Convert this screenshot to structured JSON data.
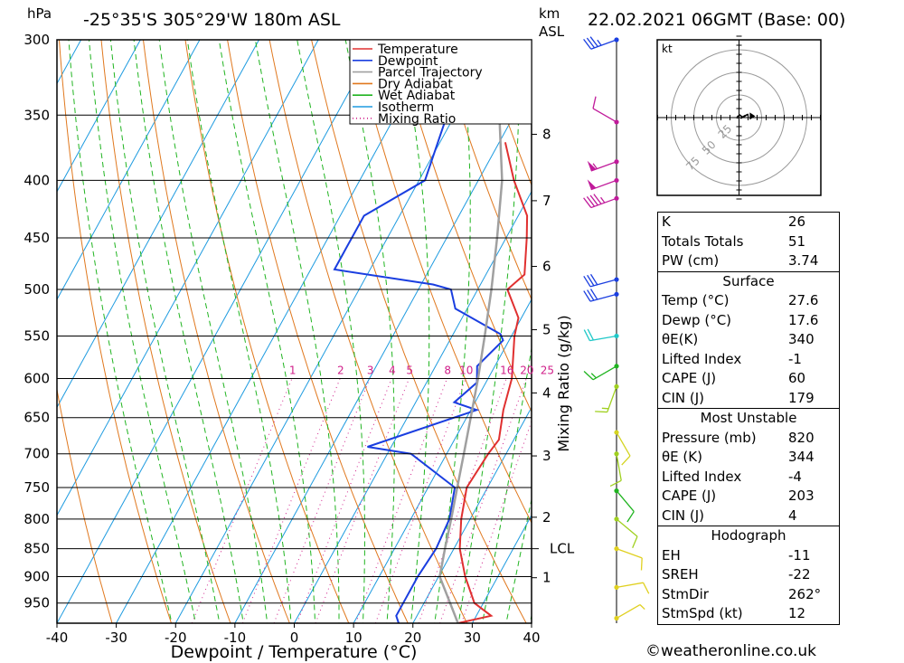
{
  "header": {
    "location": "-25°35'S  305°29'W  180m  ASL",
    "datetime": "22.02.2021  06GMT  (Base: 00)",
    "left_unit": "hPa",
    "km_unit": "km",
    "asl_unit": "ASL",
    "kt_label": "kt"
  },
  "chart_data": {
    "type": "line",
    "subtype": "skew-T log-P",
    "xlabel": "Dewpoint / Temperature (°C)",
    "ylabel": "hPa",
    "right_label": "Mixing Ratio (g/kg)",
    "xlim": [
      -40,
      40
    ],
    "ylim": [
      300,
      990
    ],
    "x_ticks": [
      -40,
      -30,
      -20,
      -10,
      0,
      10,
      20,
      30,
      40
    ],
    "pressure_levels": [
      300,
      350,
      400,
      450,
      500,
      550,
      600,
      650,
      700,
      750,
      800,
      850,
      900,
      950
    ],
    "km_ticks": [
      {
        "label": "1",
        "p": 902
      },
      {
        "label": "2",
        "p": 797
      },
      {
        "label": "3",
        "p": 703
      },
      {
        "label": "4",
        "p": 618
      },
      {
        "label": "5",
        "p": 543
      },
      {
        "label": "6",
        "p": 477
      },
      {
        "label": "7",
        "p": 417
      },
      {
        "label": "8",
        "p": 364
      }
    ],
    "lcl": {
      "label": "LCL",
      "p": 850
    },
    "mixing_ratio_labels": [
      "1",
      "2",
      "3",
      "4",
      "5",
      "8",
      "10",
      "16",
      "20",
      "25"
    ],
    "mixing_ratio_values": [
      1,
      2,
      3,
      4,
      5,
      8,
      10,
      16,
      20,
      25
    ],
    "legend": [
      "Temperature",
      "Dewpoint",
      "Parcel Trajectory",
      "Dry Adiabat",
      "Wet Adiabat",
      "Isotherm",
      "Mixing Ratio"
    ],
    "legend_placement": "top",
    "colors": {
      "temperature": "#e03030",
      "dewpoint": "#1a3ee0",
      "parcel": "#a0a0a0",
      "dry_adiabat": "#e0781e",
      "wet_adiabat": "#20b420",
      "isotherm": "#1e9be0",
      "mixing_ratio": "#d0208a"
    },
    "series": [
      {
        "name": "Temperature",
        "points": [
          [
            990,
            27.6
          ],
          [
            975,
            32.5
          ],
          [
            950,
            28.5
          ],
          [
            900,
            24.5
          ],
          [
            850,
            21.0
          ],
          [
            800,
            18.5
          ],
          [
            750,
            16.5
          ],
          [
            700,
            17.0
          ],
          [
            680,
            17.5
          ],
          [
            640,
            15.5
          ],
          [
            600,
            14.0
          ],
          [
            550,
            10.5
          ],
          [
            530,
            9.5
          ],
          [
            500,
            5.0
          ],
          [
            485,
            6.5
          ],
          [
            450,
            3.5
          ],
          [
            430,
            1.5
          ],
          [
            400,
            -4.0
          ],
          [
            370,
            -9.0
          ]
        ]
      },
      {
        "name": "Dewpoint",
        "points": [
          [
            990,
            17.6
          ],
          [
            975,
            16.5
          ],
          [
            900,
            16.5
          ],
          [
            850,
            17.0
          ],
          [
            800,
            16.5
          ],
          [
            750,
            14.5
          ],
          [
            700,
            4.0
          ],
          [
            690,
            -4.0
          ],
          [
            640,
            11.0
          ],
          [
            630,
            6.5
          ],
          [
            605,
            8.5
          ],
          [
            585,
            7.0
          ],
          [
            555,
            9.0
          ],
          [
            548,
            8.0
          ],
          [
            520,
            -2.0
          ],
          [
            500,
            -4.5
          ],
          [
            495,
            -8.0
          ],
          [
            480,
            -26.0
          ],
          [
            460,
            -26.0
          ],
          [
            430,
            -26.0
          ],
          [
            400,
            -19.0
          ],
          [
            300,
            -24.0
          ]
        ]
      },
      {
        "name": "Parcel Trajectory",
        "points": [
          [
            990,
            27.6
          ],
          [
            950,
            24.4
          ],
          [
            900,
            20.2
          ],
          [
            850,
            18.5
          ],
          [
            800,
            16.8
          ],
          [
            750,
            14.9
          ],
          [
            700,
            12.9
          ],
          [
            650,
            10.7
          ],
          [
            600,
            8.3
          ],
          [
            550,
            5.5
          ],
          [
            500,
            2.3
          ],
          [
            450,
            -1.5
          ],
          [
            400,
            -6.0
          ],
          [
            350,
            -12.5
          ],
          [
            300,
            -20.5
          ]
        ]
      }
    ],
    "wind_profile": [
      {
        "p": 300,
        "dir": 250,
        "kt": 35,
        "color": "#1a3ee0"
      },
      {
        "p": 355,
        "dir": 300,
        "kt": 10,
        "color": "#c01a9a"
      },
      {
        "p": 385,
        "dir": 250,
        "kt": 55,
        "color": "#c01a9a"
      },
      {
        "p": 400,
        "dir": 250,
        "kt": 50,
        "color": "#c01a9a"
      },
      {
        "p": 415,
        "dir": 250,
        "kt": 45,
        "color": "#c01a9a"
      },
      {
        "p": 490,
        "dir": 255,
        "kt": 30,
        "color": "#1a3ee0"
      },
      {
        "p": 505,
        "dir": 255,
        "kt": 30,
        "color": "#1a3ee0"
      },
      {
        "p": 550,
        "dir": 260,
        "kt": 20,
        "color": "#20c8c8"
      },
      {
        "p": 585,
        "dir": 240,
        "kt": 15,
        "color": "#20b420"
      },
      {
        "p": 610,
        "dir": 200,
        "kt": 15,
        "color": "#a0d020"
      },
      {
        "p": 670,
        "dir": 150,
        "kt": 10,
        "color": "#d4d420"
      },
      {
        "p": 700,
        "dir": 170,
        "kt": 10,
        "color": "#a0d020"
      },
      {
        "p": 755,
        "dir": 140,
        "kt": 10,
        "color": "#20b420"
      },
      {
        "p": 800,
        "dir": 130,
        "kt": 10,
        "color": "#a0d020"
      },
      {
        "p": 850,
        "dir": 110,
        "kt": 10,
        "color": "#e0d020"
      },
      {
        "p": 920,
        "dir": 80,
        "kt": 10,
        "color": "#e0d020"
      },
      {
        "p": 980,
        "dir": 60,
        "kt": 5,
        "color": "#e0d020"
      }
    ],
    "hodograph": {
      "rings_kt": [
        25,
        50,
        75
      ],
      "ring_labels": [
        "25",
        "50",
        "75"
      ],
      "storm_motion": {
        "dir": 262,
        "kt": 12
      }
    }
  },
  "indices": {
    "K": {
      "label": "K",
      "value": "26"
    },
    "TT": {
      "label": "Totals Totals",
      "value": "51"
    },
    "PW": {
      "label": "PW (cm)",
      "value": "3.74"
    }
  },
  "surface": {
    "title": "Surface",
    "temp": {
      "label": "Temp (°C)",
      "value": "27.6"
    },
    "dewp": {
      "label": "Dewp (°C)",
      "value": "17.6"
    },
    "theta_e": {
      "label": "θE(K)",
      "value": "340"
    },
    "li": {
      "label": "Lifted Index",
      "value": "-1"
    },
    "cape": {
      "label": "CAPE (J)",
      "value": "60"
    },
    "cin": {
      "label": "CIN (J)",
      "value": "179"
    }
  },
  "most_unstable": {
    "title": "Most Unstable",
    "pressure": {
      "label": "Pressure (mb)",
      "value": "820"
    },
    "theta_e": {
      "label": "θE (K)",
      "value": "344"
    },
    "li": {
      "label": "Lifted Index",
      "value": "-4"
    },
    "cape": {
      "label": "CAPE (J)",
      "value": "203"
    },
    "cin": {
      "label": "CIN (J)",
      "value": "4"
    }
  },
  "hodograph_table": {
    "title": "Hodograph",
    "eh": {
      "label": "EH",
      "value": "-11"
    },
    "sreh": {
      "label": "SREH",
      "value": "-22"
    },
    "stmdir": {
      "label": "StmDir",
      "value": "262°"
    },
    "stmspd": {
      "label": "StmSpd (kt)",
      "value": "12"
    }
  },
  "footer": "©weatheronline.co.uk"
}
